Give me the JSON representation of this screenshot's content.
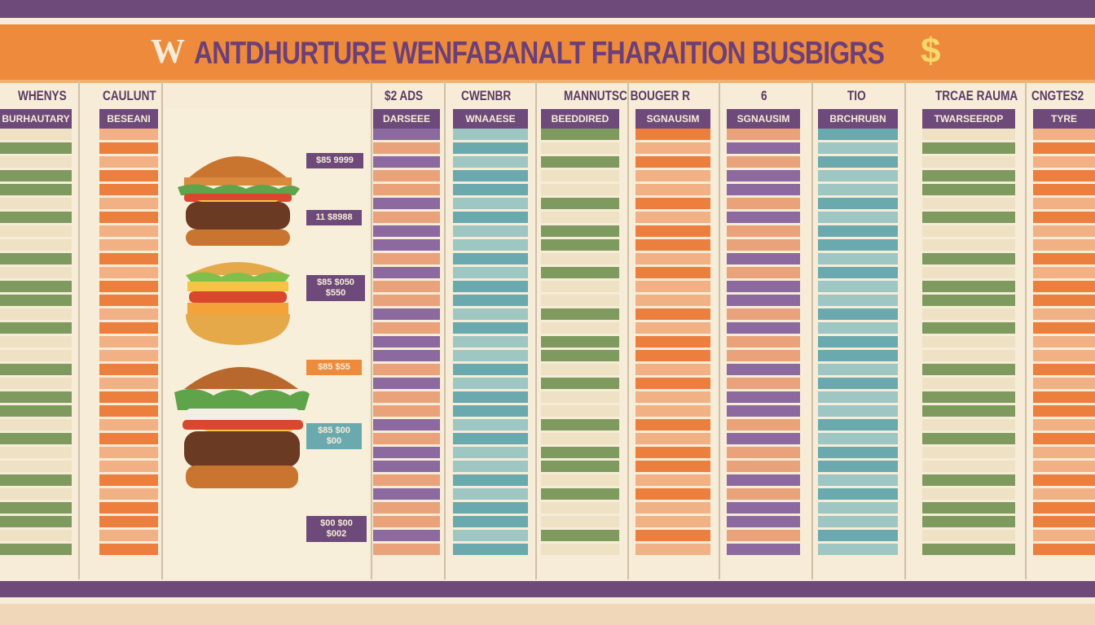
{
  "title": {
    "prefix": "W",
    "text": "ANTDHURTURE WENFABANALT FHARAITION BUSBIGRS",
    "suffix": "$"
  },
  "headers": [
    "WHENYS",
    "CAULUNT",
    "$2 ADS",
    "CWENBR",
    "MANNUTSC BOUGER R",
    "6",
    "TIO",
    "TRCAE RAUMA",
    "CNGTES2"
  ],
  "captions": [
    "BURHAUTARY",
    "BESEANI",
    "DARSEEE",
    "WNAAESE",
    "BEEDDIRED",
    "SGNAUSIM",
    "BRCHRUBN",
    "TWARSEERDP",
    "TYRE"
  ],
  "prices": [
    "$85 9999",
    "11 $8988",
    "$85 $050 $550",
    "$85 $55",
    "$85 $00 $00",
    "$00 $00 $002"
  ],
  "icons": {
    "burger_1": "burger-icon",
    "burger_2": "burger-icon",
    "burger_3": "burger-icon"
  },
  "colors": {
    "purple": "#6e4a7a",
    "orange": "#ee8a3c",
    "teal": "#6aa9ad",
    "cream": "#f6ecd8"
  }
}
